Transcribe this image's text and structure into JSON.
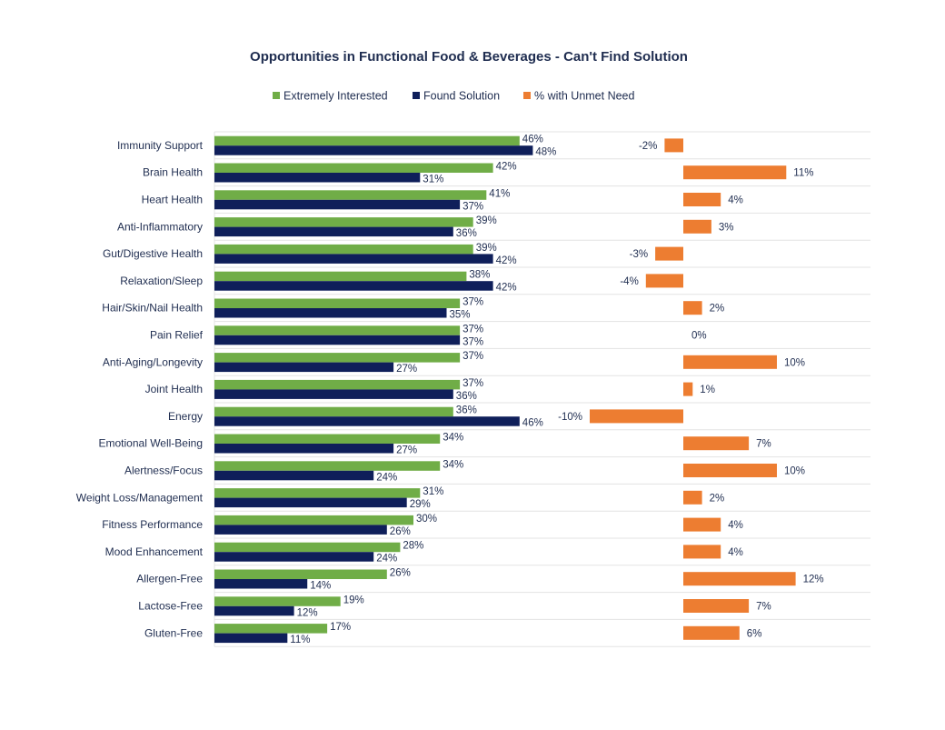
{
  "chart_data": {
    "type": "bar",
    "orientation": "horizontal",
    "title": "Opportunities in Functional Food & Beverages - Can't Find Solution",
    "legend_position": "top",
    "grid": false,
    "categories": [
      "Immunity Support",
      "Brain Health",
      "Heart Health",
      "Anti-Inflammatory",
      "Gut/Digestive Health",
      "Relaxation/Sleep",
      "Hair/Skin/Nail Health",
      "Pain Relief",
      "Anti-Aging/Longevity",
      "Joint Health",
      "Energy",
      "Emotional Well-Being",
      "Alertness/Focus",
      "Weight Loss/Management",
      "Fitness Performance",
      "Mood Enhancement",
      "Allergen-Free",
      "Lactose-Free",
      "Gluten-Free"
    ],
    "series": [
      {
        "name": "Extremely Interested",
        "color": "#70ad47",
        "values": [
          46,
          42,
          41,
          39,
          39,
          38,
          37,
          37,
          37,
          37,
          36,
          34,
          34,
          31,
          30,
          28,
          26,
          19,
          17
        ]
      },
      {
        "name": "Found Solution",
        "color": "#0f1f5a",
        "values": [
          48,
          31,
          37,
          36,
          42,
          42,
          35,
          37,
          27,
          36,
          46,
          27,
          24,
          29,
          26,
          24,
          14,
          12,
          11
        ]
      },
      {
        "name": "% with Unmet Need",
        "color": "#ed7d31",
        "values": [
          -2,
          11,
          4,
          3,
          -3,
          -4,
          2,
          0,
          10,
          1,
          -10,
          7,
          10,
          2,
          4,
          4,
          12,
          7,
          6
        ]
      }
    ],
    "value_suffix": "%"
  }
}
